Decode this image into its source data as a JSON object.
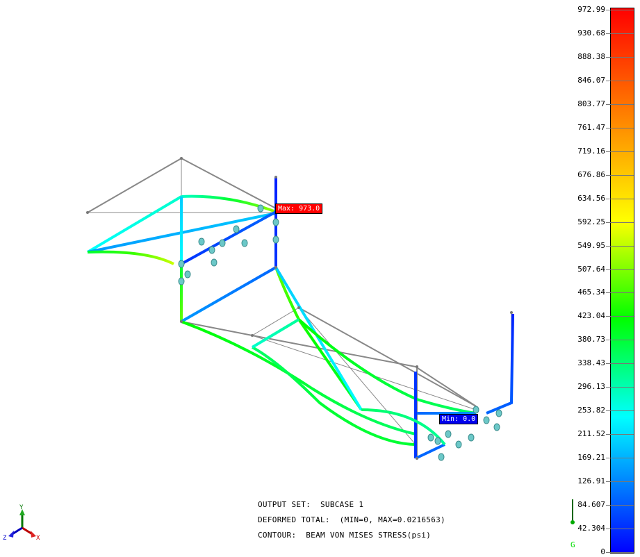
{
  "info": {
    "output_set": "OUTPUT SET:  SUBCASE 1",
    "deformed": "DEFORMED TOTAL:  (MIN=0, MAX=0.0216563)",
    "contour": "CONTOUR:  BEAM VON MISES STRESS(psi)"
  },
  "markers": {
    "max_label": "Max: 973.0",
    "min_label": "Min: 0.0",
    "max_color": "#ff0000",
    "min_color": "#0000ff"
  },
  "legend": {
    "levels": [
      "972.99",
      "930.68",
      "888.38",
      "846.07",
      "803.77",
      "761.47",
      "719.16",
      "676.86",
      "634.56",
      "592.25",
      "549.95",
      "507.64",
      "465.34",
      "423.04",
      "380.73",
      "338.43",
      "296.13",
      "253.82",
      "211.52",
      "169.21",
      "126.91",
      "84.607",
      "42.304",
      "0"
    ],
    "palette": [
      "#0000ff",
      "#00ffff",
      "#00ff00",
      "#ffff00",
      "#ff0000"
    ]
  },
  "gravity": {
    "label": "G",
    "color": "#00dd00"
  },
  "triad": {
    "x": "X",
    "y": "Y",
    "z": "Z",
    "x_color": "#cc0000",
    "y_color": "#007700",
    "z_color": "#0000cc"
  }
}
